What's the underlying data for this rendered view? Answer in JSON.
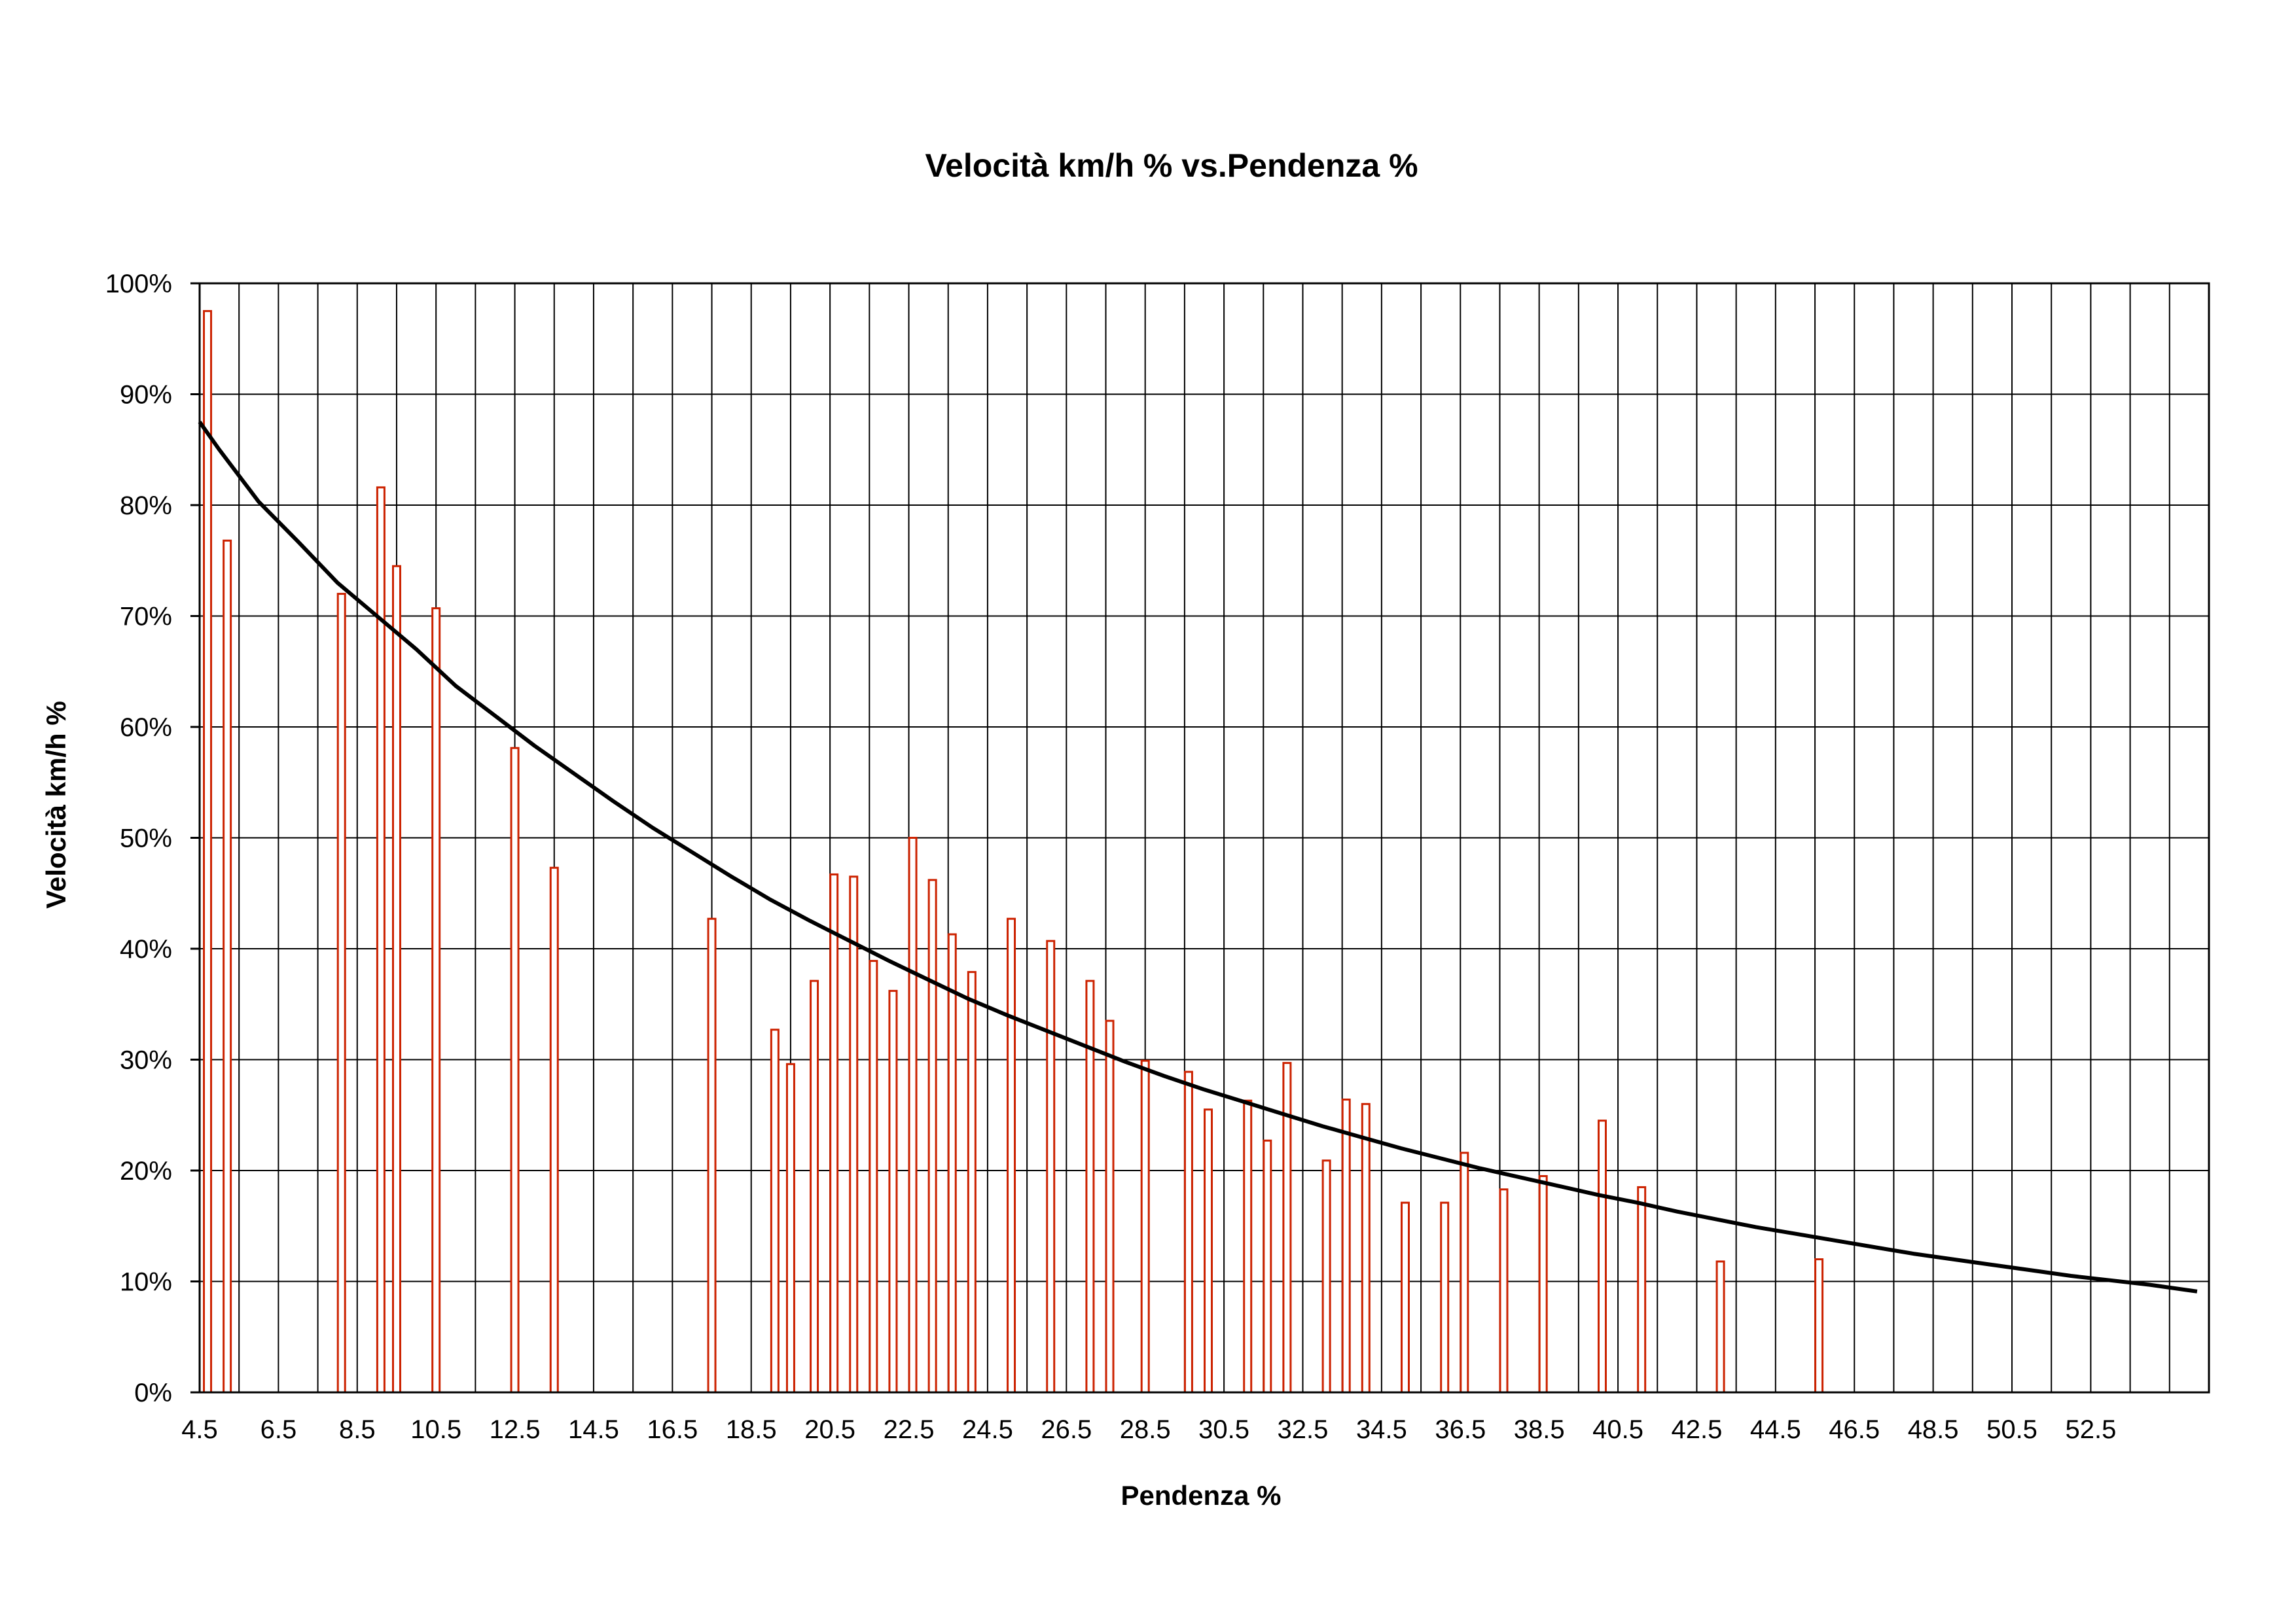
{
  "chart_data": {
    "type": "bar",
    "title": "Velocità km/h % vs.Pendenza %",
    "xlabel": "Pendenza %",
    "ylabel": "Velocità km/h %",
    "xlim": [
      4.5,
      55.5
    ],
    "ylim": [
      0,
      100
    ],
    "x_tick_step": 1,
    "x_tick_labels": [
      "4.5",
      "6.5",
      "8.5",
      "10.5",
      "12.5",
      "14.5",
      "16.5",
      "18.5",
      "20.5",
      "22.5",
      "24.5",
      "26.5",
      "28.5",
      "30.5",
      "32.5",
      "34.5",
      "36.5",
      "38.5",
      "40.5",
      "42.5",
      "44.5",
      "46.5",
      "48.5",
      "50.5",
      "52.5"
    ],
    "y_tick_labels": [
      "0%",
      "10%",
      "20%",
      "30%",
      "40%",
      "50%",
      "60%",
      "70%",
      "80%",
      "90%",
      "100%"
    ],
    "grid": true,
    "legend": "none",
    "series": [
      {
        "type": "bar",
        "color": "#cc2200",
        "points": [
          {
            "x": 4.7,
            "y": 97.5
          },
          {
            "x": 5.2,
            "y": 76.8
          },
          {
            "x": 8.1,
            "y": 72.0
          },
          {
            "x": 9.1,
            "y": 81.6
          },
          {
            "x": 9.5,
            "y": 74.5
          },
          {
            "x": 10.5,
            "y": 70.7
          },
          {
            "x": 12.5,
            "y": 58.1
          },
          {
            "x": 13.5,
            "y": 47.3
          },
          {
            "x": 17.5,
            "y": 42.7
          },
          {
            "x": 19.1,
            "y": 32.7
          },
          {
            "x": 19.5,
            "y": 29.6
          },
          {
            "x": 20.1,
            "y": 37.1
          },
          {
            "x": 20.6,
            "y": 46.7
          },
          {
            "x": 21.1,
            "y": 46.5
          },
          {
            "x": 21.6,
            "y": 38.9
          },
          {
            "x": 22.1,
            "y": 36.2
          },
          {
            "x": 22.6,
            "y": 50.0
          },
          {
            "x": 23.1,
            "y": 46.2
          },
          {
            "x": 23.6,
            "y": 41.3
          },
          {
            "x": 24.1,
            "y": 37.9
          },
          {
            "x": 25.1,
            "y": 42.7
          },
          {
            "x": 26.1,
            "y": 40.7
          },
          {
            "x": 27.1,
            "y": 37.1
          },
          {
            "x": 27.6,
            "y": 33.5
          },
          {
            "x": 28.5,
            "y": 29.9
          },
          {
            "x": 29.6,
            "y": 28.9
          },
          {
            "x": 30.1,
            "y": 25.5
          },
          {
            "x": 31.1,
            "y": 26.3
          },
          {
            "x": 31.6,
            "y": 22.7
          },
          {
            "x": 32.1,
            "y": 29.7
          },
          {
            "x": 33.1,
            "y": 20.9
          },
          {
            "x": 33.6,
            "y": 26.4
          },
          {
            "x": 34.1,
            "y": 26.0
          },
          {
            "x": 35.1,
            "y": 17.1
          },
          {
            "x": 36.1,
            "y": 17.1
          },
          {
            "x": 36.6,
            "y": 21.6
          },
          {
            "x": 37.6,
            "y": 18.3
          },
          {
            "x": 38.6,
            "y": 19.5
          },
          {
            "x": 40.1,
            "y": 24.5
          },
          {
            "x": 41.1,
            "y": 18.5
          },
          {
            "x": 43.1,
            "y": 11.8
          },
          {
            "x": 45.6,
            "y": 12.0
          }
        ]
      },
      {
        "type": "line",
        "color": "#000000",
        "points": [
          {
            "x": 4.5,
            "y": 87.5
          },
          {
            "x": 5.0,
            "y": 85.0
          },
          {
            "x": 6.0,
            "y": 80.3
          },
          {
            "x": 7.0,
            "y": 76.7
          },
          {
            "x": 8.0,
            "y": 73.0
          },
          {
            "x": 9.0,
            "y": 70.0
          },
          {
            "x": 10.0,
            "y": 67.0
          },
          {
            "x": 11.0,
            "y": 63.7
          },
          {
            "x": 12.0,
            "y": 61.0
          },
          {
            "x": 13.0,
            "y": 58.3
          },
          {
            "x": 14.0,
            "y": 55.8
          },
          {
            "x": 15.0,
            "y": 53.3
          },
          {
            "x": 16.0,
            "y": 50.9
          },
          {
            "x": 17.0,
            "y": 48.7
          },
          {
            "x": 18.0,
            "y": 46.5
          },
          {
            "x": 19.0,
            "y": 44.4
          },
          {
            "x": 20.0,
            "y": 42.5
          },
          {
            "x": 21.0,
            "y": 40.7
          },
          {
            "x": 22.0,
            "y": 38.9
          },
          {
            "x": 23.0,
            "y": 37.2
          },
          {
            "x": 24.0,
            "y": 35.5
          },
          {
            "x": 25.0,
            "y": 34.0
          },
          {
            "x": 26.0,
            "y": 32.6
          },
          {
            "x": 27.0,
            "y": 31.2
          },
          {
            "x": 28.0,
            "y": 29.8
          },
          {
            "x": 29.0,
            "y": 28.5
          },
          {
            "x": 30.0,
            "y": 27.3
          },
          {
            "x": 31.0,
            "y": 26.2
          },
          {
            "x": 32.0,
            "y": 25.1
          },
          {
            "x": 33.0,
            "y": 24.0
          },
          {
            "x": 34.0,
            "y": 23.0
          },
          {
            "x": 35.0,
            "y": 22.0
          },
          {
            "x": 36.0,
            "y": 21.1
          },
          {
            "x": 37.0,
            "y": 20.2
          },
          {
            "x": 38.0,
            "y": 19.4
          },
          {
            "x": 39.0,
            "y": 18.6
          },
          {
            "x": 40.0,
            "y": 17.8
          },
          {
            "x": 41.0,
            "y": 17.1
          },
          {
            "x": 42.0,
            "y": 16.3
          },
          {
            "x": 43.0,
            "y": 15.6
          },
          {
            "x": 44.0,
            "y": 14.9
          },
          {
            "x": 45.0,
            "y": 14.3
          },
          {
            "x": 46.0,
            "y": 13.7
          },
          {
            "x": 47.0,
            "y": 13.1
          },
          {
            "x": 48.0,
            "y": 12.5
          },
          {
            "x": 49.0,
            "y": 12.0
          },
          {
            "x": 50.0,
            "y": 11.5
          },
          {
            "x": 51.0,
            "y": 11.0
          },
          {
            "x": 52.0,
            "y": 10.5
          },
          {
            "x": 53.0,
            "y": 10.1
          },
          {
            "x": 54.0,
            "y": 9.7
          },
          {
            "x": 55.0,
            "y": 9.2
          },
          {
            "x": 55.2,
            "y": 9.1
          }
        ]
      }
    ]
  }
}
